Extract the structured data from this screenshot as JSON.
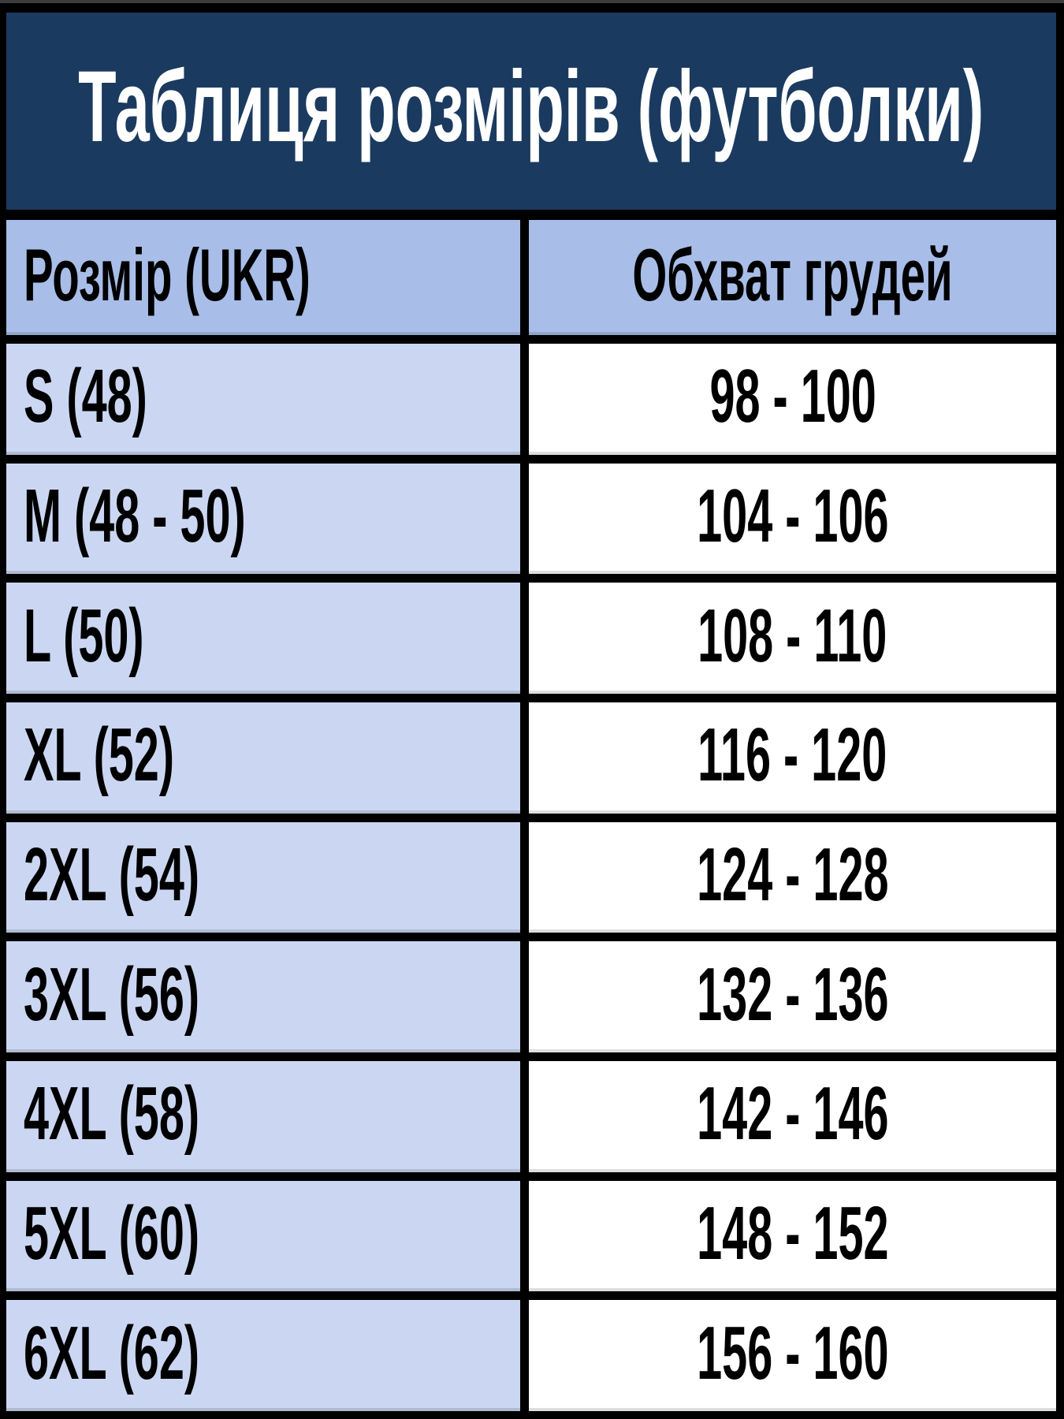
{
  "title": "Таблиця розмірів (футболки)",
  "table": {
    "columns": [
      {
        "label": "Розмір (UKR)"
      },
      {
        "label": "Обхват грудей"
      }
    ],
    "rows": [
      {
        "size": "S (48)",
        "chest": "98 - 100"
      },
      {
        "size": "M (48 - 50)",
        "chest": "104 - 106"
      },
      {
        "size": "L (50)",
        "chest": "108 - 110"
      },
      {
        "size": "XL (52)",
        "chest": "116 - 120"
      },
      {
        "size": "2XL (54)",
        "chest": "124 - 128"
      },
      {
        "size": "3XL (56)",
        "chest": "132 - 136"
      },
      {
        "size": "4XL (58)",
        "chest": "142 - 146"
      },
      {
        "size": "5XL (60)",
        "chest": "148 - 152"
      },
      {
        "size": "6XL (62)",
        "chest": "156 - 160"
      }
    ]
  },
  "colors": {
    "banner_bg": "#1B3A5F",
    "header_row_bg": "#A8BEE8",
    "size_cell_bg": "#CBD7F2",
    "value_cell_bg": "#FFFFFF",
    "border": "#000000",
    "title_text": "#FFFFFF",
    "cell_text": "#000000"
  }
}
